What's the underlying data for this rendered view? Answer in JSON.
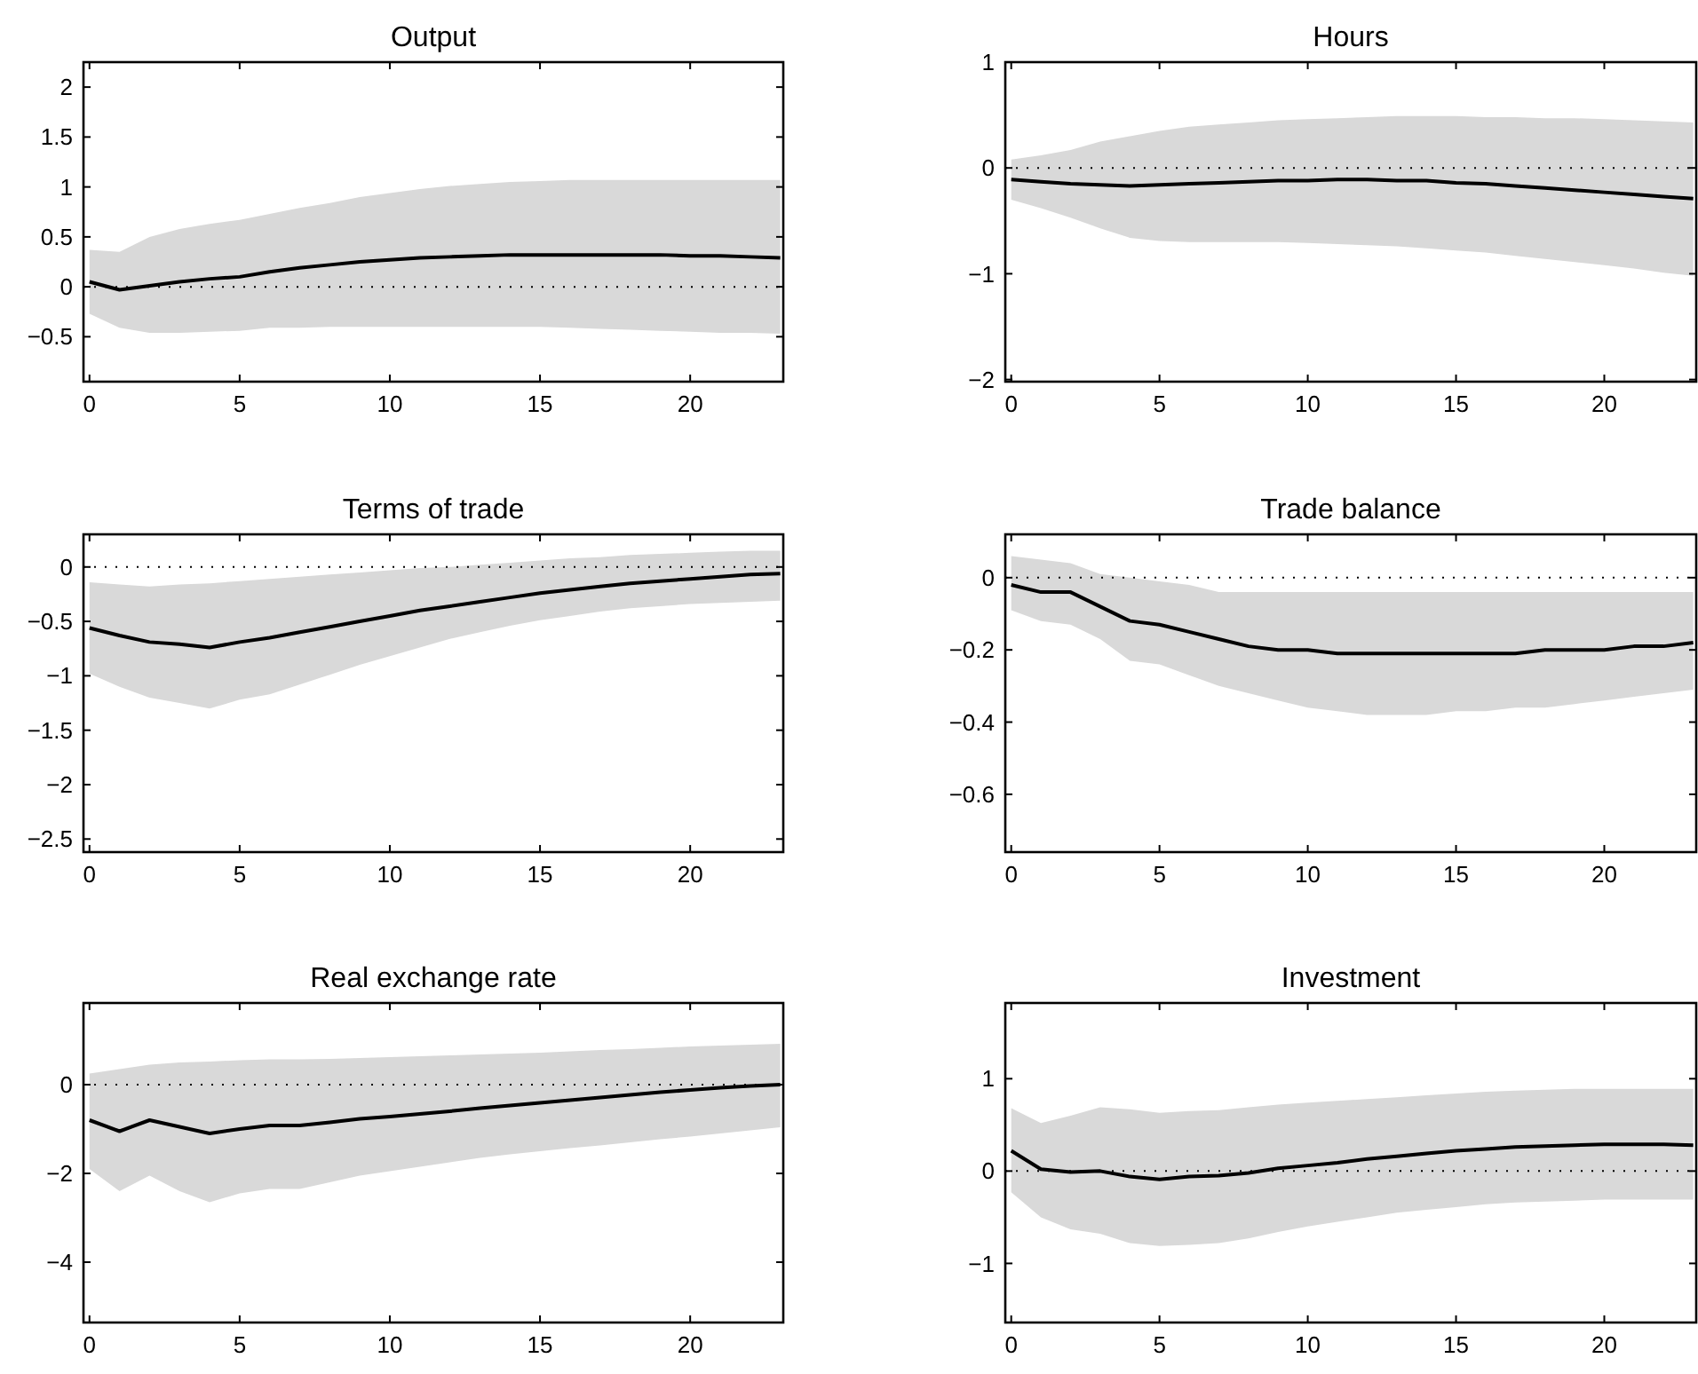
{
  "chart_data": [
    {
      "type": "line",
      "title": "Output",
      "x": [
        0,
        1,
        2,
        3,
        4,
        5,
        6,
        7,
        8,
        9,
        10,
        11,
        12,
        13,
        14,
        15,
        16,
        17,
        18,
        19,
        20,
        21,
        22,
        23
      ],
      "xlim": [
        -0.2,
        23.1
      ],
      "xticks": [
        0,
        5,
        10,
        15,
        20
      ],
      "ylim": [
        -0.95,
        2.25
      ],
      "yticks": [
        -0.5,
        0,
        0.5,
        1,
        1.5,
        2
      ],
      "grid": false,
      "series": [
        {
          "color": "#000000",
          "values": [
            0.05,
            -0.03,
            0.01,
            0.05,
            0.08,
            0.1,
            0.15,
            0.19,
            0.22,
            0.25,
            0.27,
            0.29,
            0.3,
            0.31,
            0.32,
            0.32,
            0.32,
            0.32,
            0.32,
            0.32,
            0.31,
            0.31,
            0.3,
            0.29
          ],
          "upper": [
            0.37,
            0.35,
            0.5,
            0.58,
            0.63,
            0.67,
            0.73,
            0.79,
            0.84,
            0.9,
            0.94,
            0.98,
            1.01,
            1.03,
            1.05,
            1.06,
            1.07,
            1.07,
            1.07,
            1.07,
            1.07,
            1.07,
            1.07,
            1.07
          ],
          "lower": [
            -0.27,
            -0.41,
            -0.46,
            -0.46,
            -0.45,
            -0.44,
            -0.41,
            -0.41,
            -0.4,
            -0.4,
            -0.4,
            -0.4,
            -0.4,
            -0.4,
            -0.4,
            -0.4,
            -0.41,
            -0.42,
            -0.43,
            -0.44,
            -0.45,
            -0.46,
            -0.46,
            -0.47
          ]
        }
      ],
      "ref_lines": [
        {
          "axis": "y",
          "value": 0,
          "color": "#000000",
          "line_style": "dotted"
        }
      ]
    },
    {
      "type": "line",
      "title": "Hours",
      "x": [
        0,
        1,
        2,
        3,
        4,
        5,
        6,
        7,
        8,
        9,
        10,
        11,
        12,
        13,
        14,
        15,
        16,
        17,
        18,
        19,
        20,
        21,
        22,
        23
      ],
      "xlim": [
        -0.2,
        23.1
      ],
      "xticks": [
        0,
        5,
        10,
        15,
        20
      ],
      "ylim": [
        -2.02,
        1
      ],
      "yticks": [
        -2,
        -1,
        0,
        1
      ],
      "grid": false,
      "series": [
        {
          "color": "#000000",
          "values": [
            -0.11,
            -0.13,
            -0.15,
            -0.16,
            -0.17,
            -0.16,
            -0.15,
            -0.14,
            -0.13,
            -0.12,
            -0.12,
            -0.11,
            -0.11,
            -0.12,
            -0.12,
            -0.14,
            -0.15,
            -0.17,
            -0.19,
            -0.21,
            -0.23,
            -0.25,
            -0.27,
            -0.29
          ],
          "upper": [
            0.08,
            0.12,
            0.17,
            0.25,
            0.3,
            0.35,
            0.39,
            0.41,
            0.43,
            0.45,
            0.46,
            0.47,
            0.48,
            0.49,
            0.49,
            0.49,
            0.48,
            0.48,
            0.47,
            0.47,
            0.46,
            0.45,
            0.44,
            0.43
          ],
          "lower": [
            -0.3,
            -0.38,
            -0.47,
            -0.57,
            -0.66,
            -0.69,
            -0.7,
            -0.7,
            -0.7,
            -0.7,
            -0.71,
            -0.72,
            -0.73,
            -0.74,
            -0.76,
            -0.78,
            -0.8,
            -0.83,
            -0.86,
            -0.89,
            -0.92,
            -0.95,
            -0.99,
            -1.02
          ]
        }
      ],
      "ref_lines": [
        {
          "axis": "y",
          "value": 0,
          "color": "#000000",
          "line_style": "dotted"
        }
      ]
    },
    {
      "type": "line",
      "title": "Terms of trade",
      "x": [
        0,
        1,
        2,
        3,
        4,
        5,
        6,
        7,
        8,
        9,
        10,
        11,
        12,
        13,
        14,
        15,
        16,
        17,
        18,
        19,
        20,
        21,
        22,
        23
      ],
      "xlim": [
        -0.2,
        23.1
      ],
      "xticks": [
        0,
        5,
        10,
        15,
        20
      ],
      "ylim": [
        -2.62,
        0.3
      ],
      "yticks": [
        -2.5,
        -2,
        -1.5,
        -1,
        -0.5,
        0
      ],
      "grid": false,
      "series": [
        {
          "color": "#000000",
          "values": [
            -0.56,
            -0.63,
            -0.69,
            -0.71,
            -0.74,
            -0.69,
            -0.65,
            -0.6,
            -0.55,
            -0.5,
            -0.45,
            -0.4,
            -0.36,
            -0.32,
            -0.28,
            -0.24,
            -0.21,
            -0.18,
            -0.15,
            -0.13,
            -0.11,
            -0.09,
            -0.07,
            -0.06
          ],
          "upper": [
            -0.14,
            -0.16,
            -0.18,
            -0.16,
            -0.15,
            -0.13,
            -0.11,
            -0.09,
            -0.07,
            -0.05,
            -0.03,
            -0.01,
            0,
            0.02,
            0.04,
            0.06,
            0.08,
            0.09,
            0.11,
            0.12,
            0.13,
            0.14,
            0.15,
            0.15
          ],
          "lower": [
            -0.98,
            -1.1,
            -1.2,
            -1.25,
            -1.3,
            -1.22,
            -1.17,
            -1.08,
            -0.99,
            -0.9,
            -0.82,
            -0.74,
            -0.66,
            -0.6,
            -0.54,
            -0.49,
            -0.45,
            -0.41,
            -0.38,
            -0.36,
            -0.34,
            -0.33,
            -0.32,
            -0.31
          ]
        }
      ],
      "ref_lines": [
        {
          "axis": "y",
          "value": 0,
          "color": "#000000",
          "line_style": "dotted"
        }
      ]
    },
    {
      "type": "line",
      "title": "Trade balance",
      "x": [
        0,
        1,
        2,
        3,
        4,
        5,
        6,
        7,
        8,
        9,
        10,
        11,
        12,
        13,
        14,
        15,
        16,
        17,
        18,
        19,
        20,
        21,
        22,
        23
      ],
      "xlim": [
        -0.2,
        23.1
      ],
      "xticks": [
        0,
        5,
        10,
        15,
        20
      ],
      "ylim": [
        -0.76,
        0.12
      ],
      "yticks": [
        -0.6,
        -0.4,
        -0.2,
        0
      ],
      "grid": false,
      "series": [
        {
          "color": "#000000",
          "values": [
            -0.02,
            -0.04,
            -0.04,
            -0.08,
            -0.12,
            -0.13,
            -0.15,
            -0.17,
            -0.19,
            -0.2,
            -0.2,
            -0.21,
            -0.21,
            -0.21,
            -0.21,
            -0.21,
            -0.21,
            -0.21,
            -0.2,
            -0.2,
            -0.2,
            -0.19,
            -0.19,
            -0.18
          ],
          "upper": [
            0.06,
            0.05,
            0.04,
            0.01,
            0,
            -0.01,
            -0.02,
            -0.04,
            -0.04,
            -0.04,
            -0.04,
            -0.04,
            -0.04,
            -0.04,
            -0.04,
            -0.04,
            -0.04,
            -0.04,
            -0.04,
            -0.04,
            -0.04,
            -0.04,
            -0.04,
            -0.04
          ],
          "lower": [
            -0.09,
            -0.12,
            -0.13,
            -0.17,
            -0.23,
            -0.24,
            -0.27,
            -0.3,
            -0.32,
            -0.34,
            -0.36,
            -0.37,
            -0.38,
            -0.38,
            -0.38,
            -0.37,
            -0.37,
            -0.36,
            -0.36,
            -0.35,
            -0.34,
            -0.33,
            -0.32,
            -0.31
          ]
        }
      ],
      "ref_lines": [
        {
          "axis": "y",
          "value": 0,
          "color": "#000000",
          "line_style": "dotted"
        }
      ]
    },
    {
      "type": "line",
      "title": "Real exchange rate",
      "x": [
        0,
        1,
        2,
        3,
        4,
        5,
        6,
        7,
        8,
        9,
        10,
        11,
        12,
        13,
        14,
        15,
        16,
        17,
        18,
        19,
        20,
        21,
        22,
        23
      ],
      "xlim": [
        -0.2,
        23.1
      ],
      "xticks": [
        0,
        5,
        10,
        15,
        20
      ],
      "ylim": [
        -5.36,
        1.84
      ],
      "yticks": [
        -4,
        -2,
        0
      ],
      "grid": false,
      "series": [
        {
          "color": "#000000",
          "values": [
            -0.8,
            -1.05,
            -0.8,
            -0.95,
            -1.1,
            -1,
            -0.92,
            -0.92,
            -0.85,
            -0.77,
            -0.72,
            -0.66,
            -0.6,
            -0.53,
            -0.47,
            -0.41,
            -0.35,
            -0.29,
            -0.23,
            -0.17,
            -0.12,
            -0.07,
            -0.03,
            0
          ],
          "upper": [
            0.25,
            0.35,
            0.45,
            0.5,
            0.52,
            0.55,
            0.57,
            0.57,
            0.58,
            0.6,
            0.62,
            0.64,
            0.66,
            0.68,
            0.7,
            0.72,
            0.75,
            0.78,
            0.8,
            0.83,
            0.86,
            0.88,
            0.9,
            0.92
          ],
          "lower": [
            -1.9,
            -2.4,
            -2.05,
            -2.4,
            -2.65,
            -2.45,
            -2.35,
            -2.35,
            -2.2,
            -2.05,
            -1.95,
            -1.85,
            -1.75,
            -1.65,
            -1.57,
            -1.5,
            -1.43,
            -1.37,
            -1.3,
            -1.23,
            -1.17,
            -1.1,
            -1.03,
            -0.96
          ]
        }
      ],
      "ref_lines": [
        {
          "axis": "y",
          "value": 0,
          "color": "#000000",
          "line_style": "dotted"
        }
      ]
    },
    {
      "type": "line",
      "title": "Investment",
      "x": [
        0,
        1,
        2,
        3,
        4,
        5,
        6,
        7,
        8,
        9,
        10,
        11,
        12,
        13,
        14,
        15,
        16,
        17,
        18,
        19,
        20,
        21,
        22,
        23
      ],
      "xlim": [
        -0.2,
        23.1
      ],
      "xticks": [
        0,
        5,
        10,
        15,
        20
      ],
      "ylim": [
        -1.64,
        1.82
      ],
      "yticks": [
        -1,
        0,
        1
      ],
      "grid": false,
      "series": [
        {
          "color": "#000000",
          "values": [
            0.22,
            0.02,
            -0.01,
            0,
            -0.06,
            -0.09,
            -0.06,
            -0.05,
            -0.02,
            0.03,
            0.06,
            0.09,
            0.13,
            0.16,
            0.19,
            0.22,
            0.24,
            0.26,
            0.27,
            0.28,
            0.29,
            0.29,
            0.29,
            0.28
          ],
          "upper": [
            0.68,
            0.52,
            0.6,
            0.69,
            0.67,
            0.63,
            0.65,
            0.66,
            0.69,
            0.72,
            0.74,
            0.76,
            0.78,
            0.8,
            0.82,
            0.84,
            0.86,
            0.87,
            0.88,
            0.89,
            0.89,
            0.89,
            0.89,
            0.89
          ],
          "lower": [
            -0.23,
            -0.5,
            -0.63,
            -0.68,
            -0.78,
            -0.81,
            -0.8,
            -0.78,
            -0.73,
            -0.66,
            -0.6,
            -0.55,
            -0.5,
            -0.45,
            -0.42,
            -0.39,
            -0.36,
            -0.34,
            -0.33,
            -0.32,
            -0.31,
            -0.31,
            -0.31,
            -0.31
          ]
        }
      ],
      "ref_lines": [
        {
          "axis": "y",
          "value": 0,
          "color": "#000000",
          "line_style": "dotted"
        }
      ]
    }
  ]
}
